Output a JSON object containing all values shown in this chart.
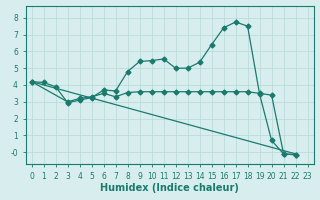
{
  "line1_x": [
    0,
    1,
    2,
    3,
    4,
    5,
    6,
    7,
    8,
    9,
    10,
    11,
    12,
    13,
    14,
    15,
    16,
    17,
    18,
    19,
    20,
    21,
    22
  ],
  "line1_y": [
    4.2,
    4.15,
    3.9,
    2.95,
    3.1,
    3.25,
    3.7,
    3.65,
    4.8,
    5.4,
    5.45,
    5.55,
    5.0,
    5.0,
    5.35,
    6.4,
    7.4,
    7.75,
    7.5,
    3.45,
    0.7,
    -0.1,
    -0.15
  ],
  "line2_x": [
    0,
    22
  ],
  "line2_y": [
    4.2,
    -0.1
  ],
  "line3_x": [
    0,
    3,
    4,
    5,
    6,
    7,
    8,
    9,
    10,
    11,
    12,
    13,
    14,
    15,
    16,
    17,
    18,
    19,
    20,
    21,
    22
  ],
  "line3_y": [
    4.2,
    3.0,
    3.2,
    3.3,
    3.5,
    3.3,
    3.55,
    3.6,
    3.6,
    3.6,
    3.6,
    3.6,
    3.6,
    3.6,
    3.6,
    3.6,
    3.6,
    3.5,
    3.4,
    -0.1,
    -0.15
  ],
  "line_color": "#1a7a6e",
  "bg_color": "#d8eeee",
  "grid_color": "#b8d8d8",
  "xlabel": "Humidex (Indice chaleur)",
  "xlim": [
    -0.5,
    23.5
  ],
  "ylim": [
    -0.7,
    8.7
  ],
  "xticks": [
    0,
    1,
    2,
    3,
    4,
    5,
    6,
    7,
    8,
    9,
    10,
    11,
    12,
    13,
    14,
    15,
    16,
    17,
    18,
    19,
    20,
    21,
    22,
    23
  ],
  "yticks": [
    0,
    1,
    2,
    3,
    4,
    5,
    6,
    7,
    8
  ],
  "ytick_labels": [
    "-0",
    "1",
    "2",
    "3",
    "4",
    "5",
    "6",
    "7",
    "8"
  ],
  "label_fontsize": 7
}
